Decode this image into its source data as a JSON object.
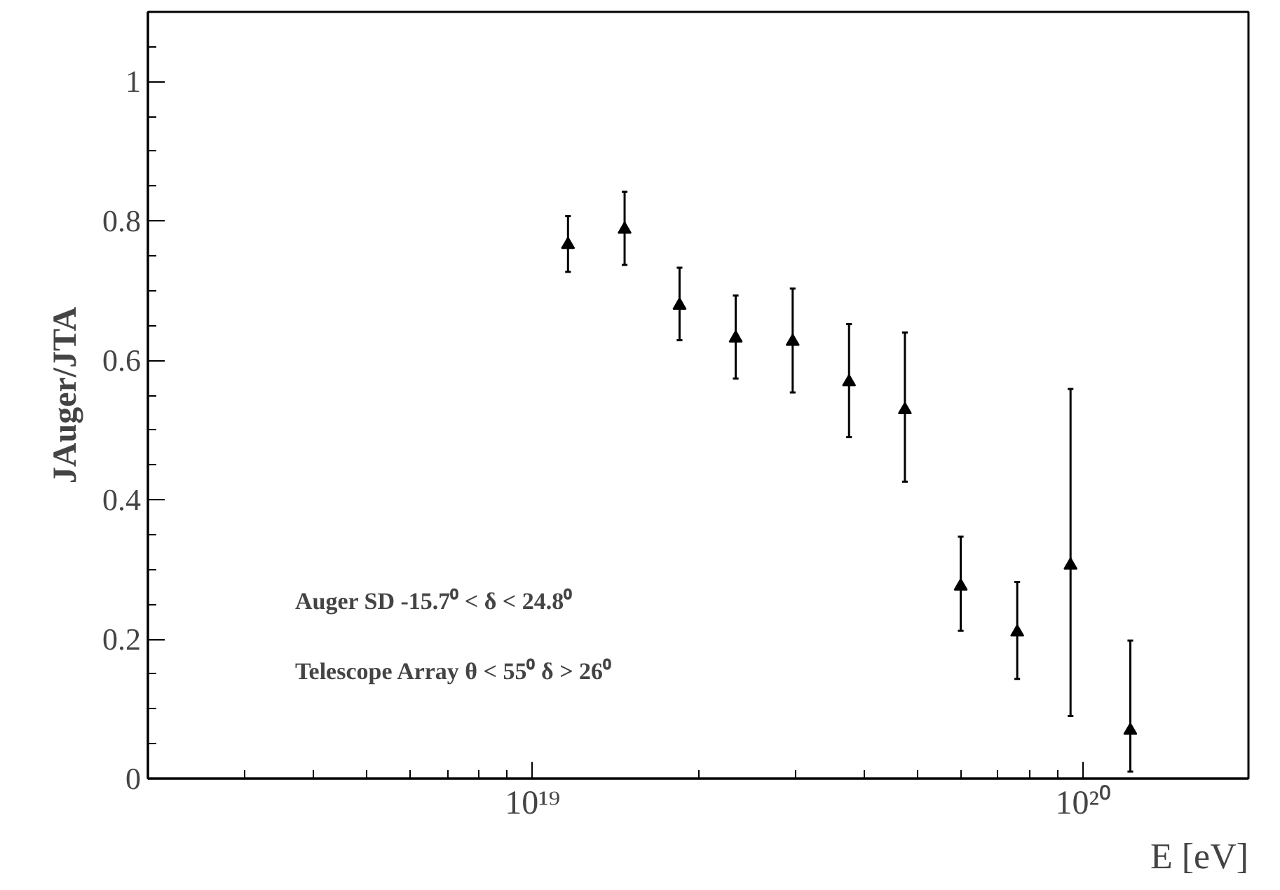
{
  "chart_data": {
    "type": "scatter",
    "xlabel": "E [eV]",
    "ylabel": "JAuger/JTA",
    "log": "x",
    "xlim": [
      2e+18,
      2e+20
    ],
    "ylim": [
      0,
      1.1
    ],
    "xticks": [
      {
        "value": 1e+19,
        "label": "10¹⁹"
      },
      {
        "value": 1e+20,
        "label": "10²⁰"
      }
    ],
    "yticks": [
      {
        "value": 0,
        "label": "0"
      },
      {
        "value": 0.2,
        "label": "0.2"
      },
      {
        "value": 0.4,
        "label": "0.4"
      },
      {
        "value": 0.6,
        "label": "0.6"
      },
      {
        "value": 0.8,
        "label": "0.8"
      },
      {
        "value": 1,
        "label": "1"
      }
    ],
    "x": [
      1.16e+19,
      1.47e+19,
      1.85e+19,
      2.34e+19,
      2.97e+19,
      3.76e+19,
      4.75e+19,
      6e+19,
      7.6e+19,
      9.5e+19,
      1.22e+20
    ],
    "values": [
      0.766,
      0.788,
      0.679,
      0.632,
      0.627,
      0.569,
      0.529,
      0.276,
      0.21,
      0.306,
      0.069
    ],
    "errors": [
      [
        0.727,
        0.807
      ],
      [
        0.737,
        0.842
      ],
      [
        0.629,
        0.733
      ],
      [
        0.574,
        0.693
      ],
      [
        0.554,
        0.703
      ],
      [
        0.49,
        0.652
      ],
      [
        0.426,
        0.64
      ],
      [
        0.212,
        0.347
      ],
      [
        0.143,
        0.282
      ],
      [
        0.09,
        0.559
      ],
      [
        0.01,
        0.198
      ]
    ],
    "color": "#000000",
    "marker": "triangle",
    "grid": false,
    "annotations": [
      "Auger SD   -15.7⁰ < δ <  24.8⁰",
      "Telescope Array  θ < 55⁰    δ > 26⁰"
    ]
  }
}
